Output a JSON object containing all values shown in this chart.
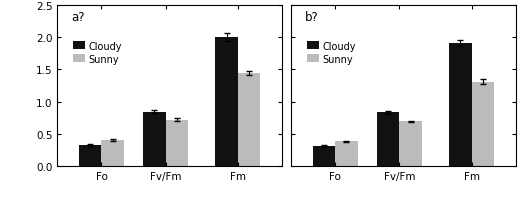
{
  "panels": [
    {
      "label": "a?",
      "categories": [
        "Fo",
        "Fv/Fm",
        "Fm"
      ],
      "cloudy_values": [
        0.32,
        0.84,
        2.0
      ],
      "sunny_values": [
        0.4,
        0.72,
        1.44
      ],
      "cloudy_errors": [
        0.015,
        0.025,
        0.06
      ],
      "sunny_errors": [
        0.012,
        0.018,
        0.035
      ]
    },
    {
      "label": "b?",
      "categories": [
        "Fo",
        "Fv/Fm",
        "Fm"
      ],
      "cloudy_values": [
        0.31,
        0.83,
        1.91
      ],
      "sunny_values": [
        0.38,
        0.69,
        1.31
      ],
      "cloudy_errors": [
        0.012,
        0.018,
        0.04
      ],
      "sunny_errors": [
        0.01,
        0.014,
        0.04
      ]
    }
  ],
  "legend_labels": [
    "Cloudy",
    "Sunny"
  ],
  "cloudy_color": "#111111",
  "sunny_color": "#bbbbbb",
  "ylim": [
    0.0,
    2.5
  ],
  "yticks": [
    0.0,
    0.5,
    1.0,
    1.5,
    2.0,
    2.5
  ],
  "bar_width": 0.28,
  "group_positions": [
    0.5,
    1.3,
    2.2
  ],
  "background_color": "#ffffff",
  "font_size": 7.5,
  "label_fontsize": 8.5
}
